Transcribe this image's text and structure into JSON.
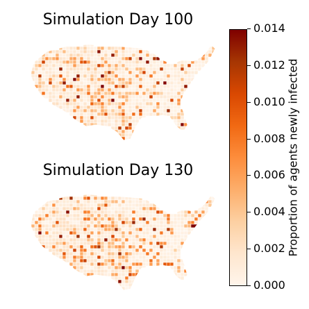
{
  "panels": [
    {
      "title": "Simulation Day 100",
      "seed": 17,
      "intensity": 0.3
    },
    {
      "title": "Simulation Day 130",
      "seed": 53,
      "intensity": 0.38
    }
  ],
  "colorbar": {
    "label": "Proportion of agents newly infected",
    "min": 0.0,
    "max": 0.014,
    "ticks": [
      "0.000",
      "0.002",
      "0.004",
      "0.006",
      "0.008",
      "0.010",
      "0.012",
      "0.014"
    ],
    "colors": [
      "#fff5eb",
      "#fee6ce",
      "#fdd0a2",
      "#fdae6b",
      "#fd8d3c",
      "#f16913",
      "#d94801",
      "#a63603",
      "#7f0000"
    ]
  },
  "colors": {
    "county_border": "#ffffff"
  }
}
